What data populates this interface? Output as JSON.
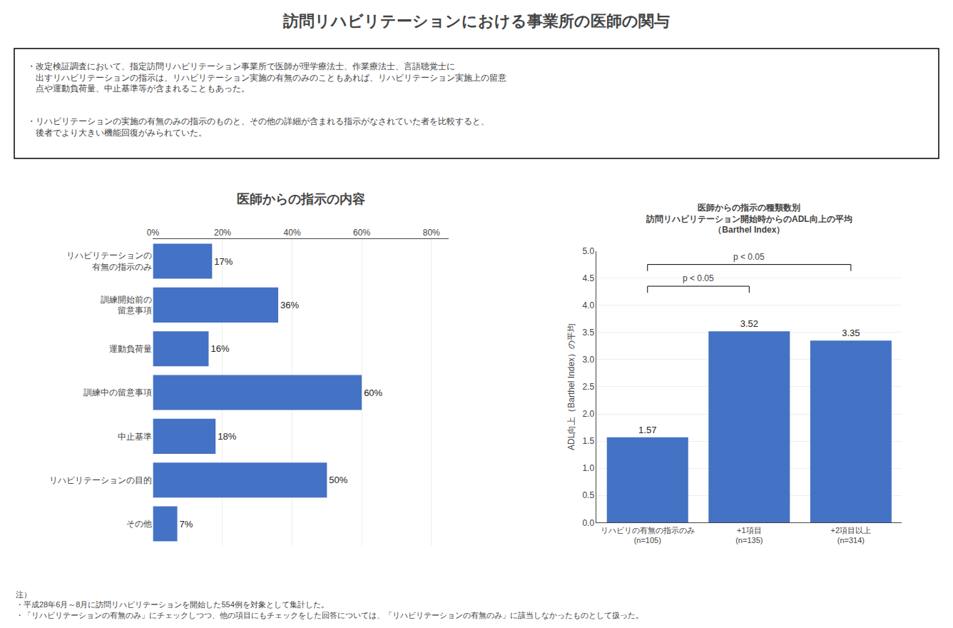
{
  "title": "訪問リハビリテーションにおける事業所の医師の関与",
  "subtitle": [
    [
      "・改定検証調査において、指定訪問リハビリテーション事業所で医師が理学療法士、作業療法士、言語聴覚士に",
      "　出すリハビリテーションの指示は、リハビリテーション実施の有無のみのこともあれば、リハビリテーション実施上の留意",
      "　点や運動負荷量、中止基準等が含まれることもあった。"
    ],
    [
      "・リハビリテーションの実施の有無のみの指示のものと、その他の詳細が含まれる指示がなされていた者を比較すると、",
      "　後者でより大きい機能回復がみられていた。"
    ]
  ],
  "annotations": [
    "注）",
    "・平成28年6月～8月に訪問リハビリテーションを開始した554例を対象として集計した。",
    "・「リハビリテーションの有無のみ」にチェックしつつ、他の項目にもチェックをした回答については、「リハビリテーションの有無のみ」に該当しなかったものとして扱った。"
  ],
  "chart_data": [
    {
      "type": "bar",
      "orientation": "horizontal",
      "title": "医師からの指示の内容",
      "categories": [
        "リハビリテーションの\n有無の指示のみ",
        "訓練開始前の\n留意事項",
        "運動負荷量",
        "訓練中の留意事項",
        "中止基準",
        "リハビリテーションの目的",
        "その他"
      ],
      "values": [
        17,
        36,
        16,
        60,
        18,
        50,
        7
      ],
      "value_labels": [
        "17%",
        "36%",
        "16%",
        "60%",
        "18%",
        "50%",
        "7%"
      ],
      "data_labels": true,
      "color": "#4472C4",
      "xlim": [
        0,
        85
      ],
      "xticks": [
        {
          "value": 0,
          "label": "0%"
        },
        {
          "value": 20,
          "label": "20%"
        },
        {
          "value": 40,
          "label": "40%"
        },
        {
          "value": 60,
          "label": "60%"
        },
        {
          "value": 80,
          "label": "80%"
        }
      ],
      "grid": true
    },
    {
      "type": "bar",
      "title": "医師からの指示の種類数別\n訪問リハビリテーション開始時からのADL向上の平均\n（Barthel Index）",
      "categories": [
        "リハビリの有無の指示のみ\n(n=105)",
        "+1項目\n(n=135)",
        "+2項目以上\n(n=314)"
      ],
      "values": [
        1.57,
        3.52,
        3.35
      ],
      "data_labels": true,
      "color": "#4472C4",
      "ylabel": "ADL向上（Barthel Index）の平均",
      "ylim": [
        0,
        5.0
      ],
      "yticks": [
        {
          "value": 0.0,
          "label": "0.0"
        },
        0.5,
        {
          "value": 1.0,
          "label": "1.0"
        },
        1.5,
        {
          "value": 2.0,
          "label": "2.0"
        },
        2.5,
        {
          "value": 3.0,
          "label": "3.0"
        },
        3.5,
        {
          "value": 4.0,
          "label": "4.0"
        },
        4.5,
        {
          "value": 5.0,
          "label": "5.0"
        }
      ],
      "grid": true,
      "annotations": [
        {
          "text": "p < 0.05",
          "from": 0,
          "to": 1,
          "y": 4.35
        },
        {
          "text": "p < 0.05",
          "from": 0,
          "to": 2,
          "y": 4.75
        }
      ]
    }
  ]
}
